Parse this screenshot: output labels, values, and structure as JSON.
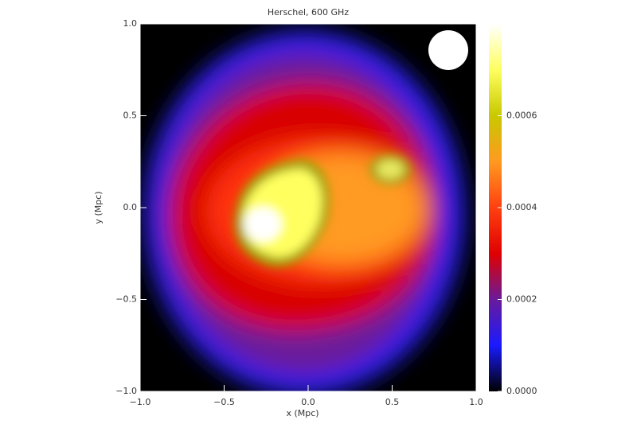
{
  "chart_data": {
    "type": "heatmap",
    "title": "Herschel, 600 GHz",
    "x_label": "x (Mpc)",
    "y_label": "y (Mpc)",
    "xlim": [
      -1,
      1
    ],
    "ylim": [
      -1,
      1
    ],
    "xticks": [
      {
        "value": -1,
        "label": "−1.0"
      },
      {
        "value": -0.5,
        "label": "−0.5"
      },
      {
        "value": 0,
        "label": "0.0"
      },
      {
        "value": 0.5,
        "label": "0.5"
      },
      {
        "value": 1,
        "label": "1.0"
      }
    ],
    "yticks": [
      {
        "value": -1,
        "label": "−1.0"
      },
      {
        "value": -0.5,
        "label": "−0.5"
      },
      {
        "value": 0,
        "label": "0.0"
      },
      {
        "value": 0.5,
        "label": "0.5"
      },
      {
        "value": 1,
        "label": "1.0"
      }
    ],
    "zlim": [
      0,
      0.0008
    ],
    "zticks": [
      {
        "value": 0,
        "label": "0.0000"
      },
      {
        "value": 0.0002,
        "label": "0.0002"
      },
      {
        "value": 0.0004,
        "label": "0.0004"
      },
      {
        "value": 0.0006,
        "label": "0.0006"
      }
    ],
    "colormap": [
      "#000000",
      "#1a1aff",
      "#6a1a9a",
      "#e00000",
      "#ff4010",
      "#ff9a20",
      "#c8c800",
      "#ffff60",
      "#ffffff"
    ]
  }
}
